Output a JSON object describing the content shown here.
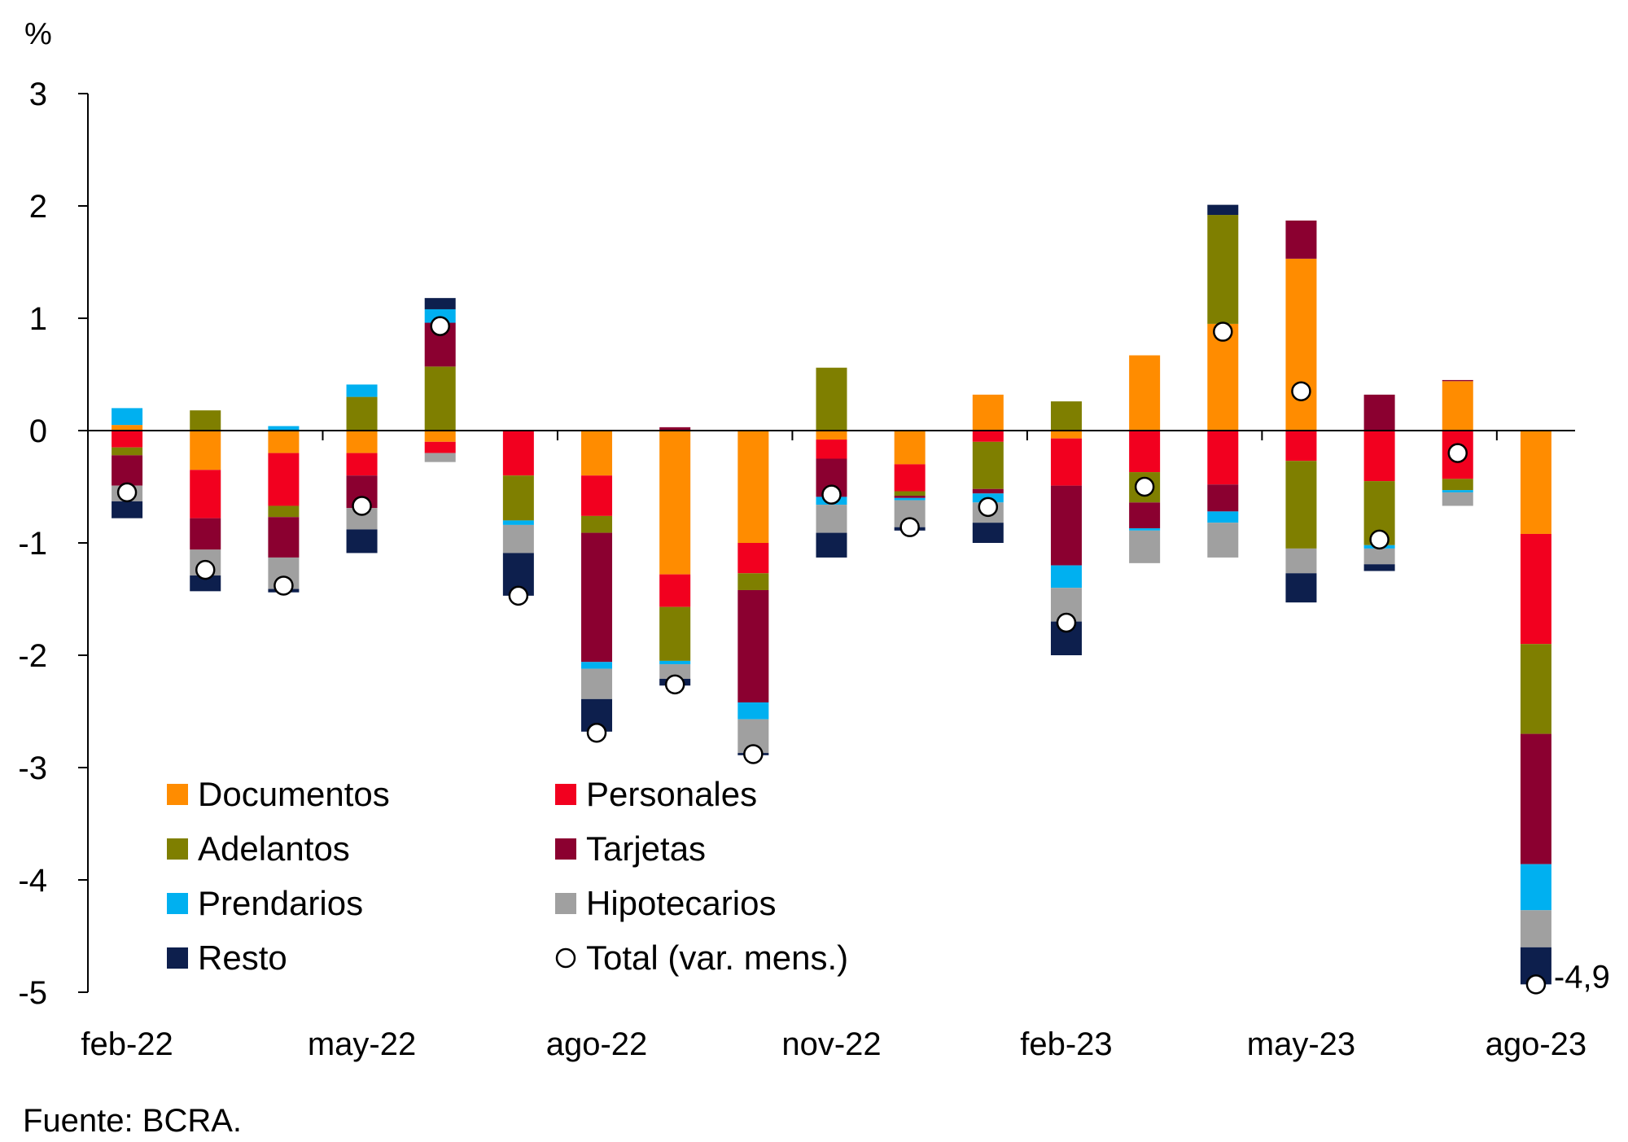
{
  "chart_data": {
    "type": "bar",
    "stacked": true,
    "ylabel": "%",
    "ylim": [
      -5,
      3
    ],
    "yticks": [
      3,
      2,
      1,
      0,
      -1,
      -2,
      -3,
      -4,
      -5
    ],
    "xtick_labels": [
      "feb-22",
      "may-22",
      "ago-22",
      "nov-22",
      "feb-23",
      "may-23",
      "ago-23"
    ],
    "categories": [
      "feb-22",
      "mar-22",
      "abr-22",
      "may-22",
      "jun-22",
      "jul-22",
      "ago-22",
      "sep-22",
      "oct-22",
      "nov-22",
      "dic-22",
      "ene-23",
      "feb-23",
      "mar-23",
      "abr-23",
      "may-23",
      "jun-23",
      "jul-23",
      "ago-23"
    ],
    "series": [
      {
        "name": "Documentos",
        "color": "#FF8C00",
        "values": [
          0.05,
          -0.35,
          -0.2,
          -0.2,
          -0.1,
          0.0,
          -0.4,
          -1.28,
          -1.0,
          -0.08,
          -0.3,
          0.32,
          -0.07,
          0.67,
          0.95,
          1.53,
          0.0,
          0.44,
          -0.92
        ]
      },
      {
        "name": "Personales",
        "color": "#F2001F",
        "values": [
          -0.15,
          -0.43,
          -0.47,
          -0.2,
          -0.1,
          -0.4,
          -0.36,
          -0.29,
          -0.27,
          -0.17,
          -0.24,
          -0.1,
          -0.42,
          -0.37,
          -0.48,
          -0.27,
          -0.45,
          -0.43,
          -0.98
        ]
      },
      {
        "name": "Adelantos",
        "color": "#7F7F00",
        "values": [
          -0.07,
          0.18,
          -0.1,
          0.3,
          0.57,
          -0.4,
          -0.15,
          -0.48,
          -0.15,
          0.56,
          -0.04,
          -0.42,
          0.26,
          -0.27,
          0.97,
          -0.78,
          -0.57,
          -0.1,
          -0.8
        ]
      },
      {
        "name": "Tarjetas",
        "color": "#8B0030",
        "values": [
          -0.27,
          -0.28,
          -0.36,
          -0.29,
          0.39,
          0.0,
          -1.15,
          0.03,
          -1.0,
          -0.34,
          -0.02,
          -0.04,
          -0.71,
          -0.23,
          -0.24,
          0.34,
          0.32,
          0.01,
          -1.16
        ]
      },
      {
        "name": "Prendarios",
        "color": "#00B0F0",
        "values": [
          0.15,
          0.0,
          0.04,
          0.11,
          0.12,
          -0.04,
          -0.06,
          -0.03,
          -0.15,
          -0.07,
          -0.02,
          -0.08,
          -0.2,
          -0.02,
          -0.1,
          0.0,
          -0.03,
          -0.02,
          -0.41
        ]
      },
      {
        "name": "Hipotecarios",
        "color": "#A0A0A0",
        "values": [
          -0.14,
          -0.23,
          -0.28,
          -0.19,
          -0.08,
          -0.25,
          -0.27,
          -0.13,
          -0.3,
          -0.25,
          -0.24,
          -0.18,
          -0.3,
          -0.29,
          -0.31,
          -0.22,
          -0.14,
          -0.12,
          -0.33
        ]
      },
      {
        "name": "Resto",
        "color": "#0D1F4D",
        "values": [
          -0.15,
          -0.14,
          -0.03,
          -0.21,
          0.1,
          -0.38,
          -0.29,
          -0.06,
          -0.02,
          -0.22,
          -0.03,
          -0.18,
          -0.3,
          0.0,
          0.09,
          -0.26,
          -0.06,
          0.0,
          -0.33
        ]
      }
    ],
    "total": {
      "name": "Total (var. mens.)",
      "values": [
        -0.55,
        -1.24,
        -1.38,
        -0.67,
        0.93,
        -1.47,
        -2.69,
        -2.26,
        -2.88,
        -0.57,
        -0.86,
        -0.68,
        -1.71,
        -0.5,
        0.88,
        0.35,
        -0.97,
        -0.2,
        -4.93
      ]
    },
    "annotation": "-4,9",
    "legend": [
      "Documentos",
      "Personales",
      "Adelantos",
      "Tarjetas",
      "Prendarios",
      "Hipotecarios",
      "Resto",
      "Total (var. mens.)"
    ],
    "legend_position": "bottom-left",
    "grid": false
  },
  "source": "Fuente: BCRA."
}
